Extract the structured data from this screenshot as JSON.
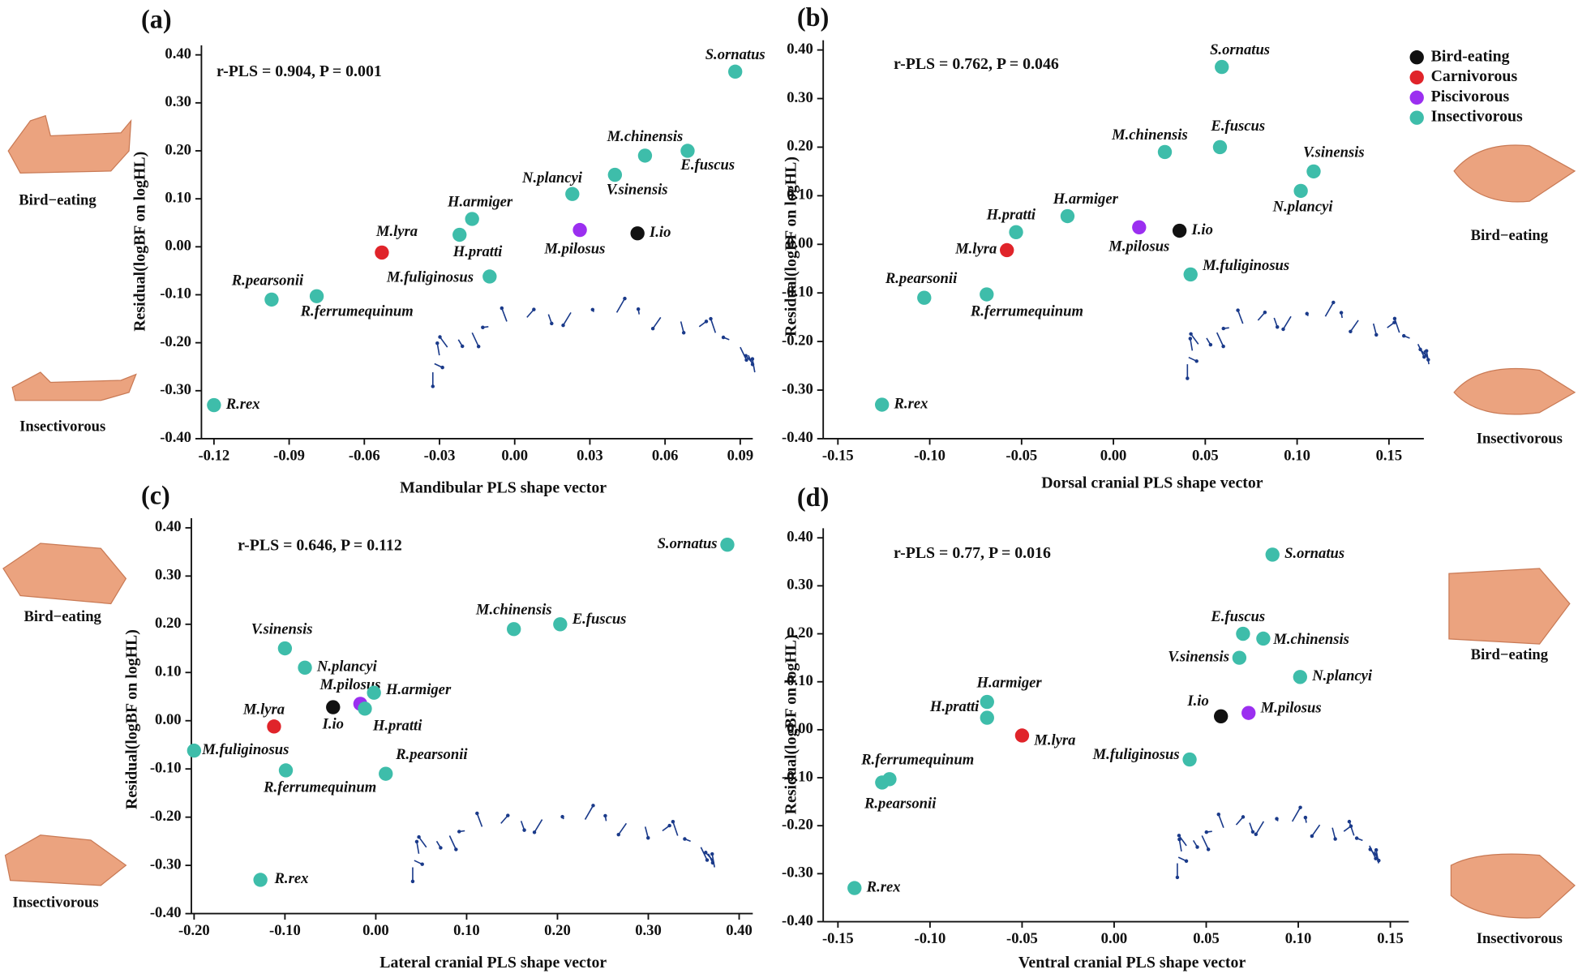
{
  "chart_data": [
    {
      "type": "scatter",
      "title": "(a)",
      "annotation": "r-PLS = 0.904, P = 0.001",
      "x_label": "Mandibular PLS shape vector",
      "y_label": "Residual(logBF on logHL)",
      "images": [
        "Bird−eating",
        "Insectivorous"
      ],
      "legend": false,
      "xlim": [
        -0.125,
        0.095
      ],
      "ylim": [
        -0.4,
        0.42
      ],
      "xticks": [
        {
          "value": -0.12,
          "label": "-0.12"
        },
        {
          "value": -0.09,
          "label": "-0.09"
        },
        {
          "value": -0.06,
          "label": "-0.06"
        },
        {
          "value": -0.03,
          "label": "-0.03"
        },
        {
          "value": 0,
          "label": "0.00"
        },
        {
          "value": 0.03,
          "label": "0.03"
        },
        {
          "value": 0.06,
          "label": "0.06"
        },
        {
          "value": 0.09,
          "label": "0.09"
        }
      ],
      "yticks": [
        {
          "value": 0.4,
          "label": "0.40"
        },
        {
          "value": 0.3,
          "label": "0.30"
        },
        {
          "value": 0.2,
          "label": "0.20"
        },
        {
          "value": 0.1,
          "label": "0.10"
        },
        {
          "value": 0,
          "label": "0.00"
        },
        {
          "value": -0.1,
          "label": "-0.10"
        },
        {
          "value": -0.2,
          "label": "-0.20"
        },
        {
          "value": -0.3,
          "label": "-0.30"
        },
        {
          "value": -0.4,
          "label": "-0.40"
        }
      ],
      "series": [
        {
          "name": "Bird-eating",
          "color": "#111111",
          "labels": [
            "I.io"
          ],
          "x": [
            0.049
          ],
          "values": [
            0.028
          ]
        },
        {
          "name": "Carnivorous",
          "color": "#e0242a",
          "labels": [
            "M.lyra"
          ],
          "x": [
            -0.053
          ],
          "values": [
            -0.012
          ]
        },
        {
          "name": "Piscivorous",
          "color": "#9b2ff0",
          "labels": [
            "M.pilosus"
          ],
          "x": [
            0.026
          ],
          "values": [
            0.035
          ]
        },
        {
          "name": "Insectivorous",
          "color": "#3ebdaa",
          "labels": [
            "S.ornatus",
            "M.chinensis",
            "E.fuscus",
            "V.sinensis",
            "N.plancyi",
            "H.armiger",
            "H.pratti",
            "M.fuliginosus",
            "R.pearsonii",
            "R.ferrumequinum",
            "R.rex"
          ],
          "x": [
            0.088,
            0.052,
            0.069,
            0.04,
            0.023,
            -0.017,
            -0.022,
            -0.01,
            -0.097,
            -0.079,
            -0.12
          ],
          "values": [
            0.365,
            0.19,
            0.2,
            0.15,
            0.11,
            0.058,
            0.025,
            -0.062,
            -0.11,
            -0.103,
            -0.33
          ]
        }
      ]
    },
    {
      "type": "scatter",
      "title": "(b)",
      "annotation": "r-PLS = 0.762, P = 0.046",
      "x_label": "Dorsal cranial PLS shape vector",
      "y_label": "Residual(logBF on logHL)",
      "images": [
        "Bird−eating",
        "Insectivorous"
      ],
      "legend": true,
      "xlim": [
        -0.158,
        0.169
      ],
      "ylim": [
        -0.4,
        0.42
      ],
      "xticks": [
        {
          "value": -0.15,
          "label": "-0.15"
        },
        {
          "value": -0.1,
          "label": "-0.10"
        },
        {
          "value": -0.05,
          "label": "-0.05"
        },
        {
          "value": 0,
          "label": "0.00"
        },
        {
          "value": 0.05,
          "label": "0.05"
        },
        {
          "value": 0.1,
          "label": "0.10"
        },
        {
          "value": 0.15,
          "label": "0.15"
        }
      ],
      "yticks": [
        {
          "value": 0.4,
          "label": "0.40"
        },
        {
          "value": 0.3,
          "label": "0.30"
        },
        {
          "value": 0.2,
          "label": "0.20"
        },
        {
          "value": 0.1,
          "label": "0.10"
        },
        {
          "value": 0,
          "label": "0.00"
        },
        {
          "value": -0.1,
          "label": "-0.10"
        },
        {
          "value": -0.2,
          "label": "-0.20"
        },
        {
          "value": -0.3,
          "label": "-0.30"
        },
        {
          "value": -0.4,
          "label": "-0.40"
        }
      ],
      "series": [
        {
          "name": "Bird-eating",
          "color": "#111111",
          "labels": [
            "I.io"
          ],
          "x": [
            0.036
          ],
          "values": [
            0.028
          ]
        },
        {
          "name": "Carnivorous",
          "color": "#e0242a",
          "labels": [
            "M.lyra"
          ],
          "x": [
            -0.058
          ],
          "values": [
            -0.012
          ]
        },
        {
          "name": "Piscivorous",
          "color": "#9b2ff0",
          "labels": [
            "M.pilosus"
          ],
          "x": [
            0.014
          ],
          "values": [
            0.035
          ]
        },
        {
          "name": "Insectivorous",
          "color": "#3ebdaa",
          "labels": [
            "S.ornatus",
            "M.chinensis",
            "E.fuscus",
            "V.sinensis",
            "N.plancyi",
            "H.armiger",
            "H.pratti",
            "M.fuliginosus",
            "R.pearsonii",
            "R.ferrumequinum",
            "R.rex"
          ],
          "x": [
            0.059,
            0.028,
            0.058,
            0.109,
            0.102,
            -0.025,
            -0.053,
            0.042,
            -0.103,
            -0.069,
            -0.126
          ],
          "values": [
            0.365,
            0.19,
            0.2,
            0.15,
            0.11,
            0.058,
            0.025,
            -0.062,
            -0.11,
            -0.103,
            -0.33
          ]
        }
      ]
    },
    {
      "type": "scatter",
      "title": "(c)",
      "annotation": "r-PLS = 0.646, P = 0.112",
      "x_label": "Lateral cranial PLS shape vector",
      "y_label": "Residual(logBF on logHL)",
      "images": [
        "Bird−eating",
        "Insectivorous"
      ],
      "legend": false,
      "xlim": [
        -0.203,
        0.415
      ],
      "ylim": [
        -0.4,
        0.42
      ],
      "xticks": [
        {
          "value": -0.2,
          "label": "-0.20"
        },
        {
          "value": -0.1,
          "label": "-0.10"
        },
        {
          "value": 0,
          "label": "0.00"
        },
        {
          "value": 0.1,
          "label": "0.10"
        },
        {
          "value": 0.2,
          "label": "0.20"
        },
        {
          "value": 0.3,
          "label": "0.30"
        },
        {
          "value": 0.4,
          "label": "0.40"
        }
      ],
      "yticks": [
        {
          "value": 0.4,
          "label": "0.40"
        },
        {
          "value": 0.3,
          "label": "0.30"
        },
        {
          "value": 0.2,
          "label": "0.20"
        },
        {
          "value": 0.1,
          "label": "0.10"
        },
        {
          "value": 0,
          "label": "0.00"
        },
        {
          "value": -0.1,
          "label": "-0.10"
        },
        {
          "value": -0.2,
          "label": "-0.20"
        },
        {
          "value": -0.3,
          "label": "-0.30"
        },
        {
          "value": -0.4,
          "label": "-0.40"
        }
      ],
      "series": [
        {
          "name": "Bird-eating",
          "color": "#111111",
          "labels": [
            "I.io"
          ],
          "x": [
            -0.047
          ],
          "values": [
            0.028
          ]
        },
        {
          "name": "Carnivorous",
          "color": "#e0242a",
          "labels": [
            "M.lyra"
          ],
          "x": [
            -0.112
          ],
          "values": [
            -0.012
          ]
        },
        {
          "name": "Piscivorous",
          "color": "#9b2ff0",
          "labels": [
            "M.pilosus"
          ],
          "x": [
            -0.017
          ],
          "values": [
            0.035
          ]
        },
        {
          "name": "Insectivorous",
          "color": "#3ebdaa",
          "labels": [
            "S.ornatus",
            "M.chinensis",
            "E.fuscus",
            "V.sinensis",
            "N.plancyi",
            "H.armiger",
            "H.pratti",
            "M.fuliginosus",
            "R.pearsonii",
            "R.ferrumequinum",
            "R.rex"
          ],
          "x": [
            0.387,
            0.152,
            0.203,
            -0.1,
            -0.078,
            -0.002,
            -0.012,
            -0.2,
            0.011,
            -0.099,
            -0.127
          ],
          "values": [
            0.365,
            0.19,
            0.2,
            0.15,
            0.11,
            0.058,
            0.025,
            -0.062,
            -0.11,
            -0.103,
            -0.33
          ]
        }
      ]
    },
    {
      "type": "scatter",
      "title": "(d)",
      "annotation": "r-PLS = 0.77, P = 0.016",
      "x_label": "Ventral cranial PLS shape vector",
      "y_label": "Residual(logBF on logHL)",
      "images": [
        "Bird−eating",
        "Insectivorous"
      ],
      "legend": false,
      "xlim": [
        -0.158,
        0.16
      ],
      "ylim": [
        -0.4,
        0.42
      ],
      "xticks": [
        {
          "value": -0.15,
          "label": "-0.15"
        },
        {
          "value": -0.1,
          "label": "-0.10"
        },
        {
          "value": -0.05,
          "label": "-0.05"
        },
        {
          "value": 0,
          "label": "0.00"
        },
        {
          "value": 0.05,
          "label": "0.05"
        },
        {
          "value": 0.1,
          "label": "0.10"
        },
        {
          "value": 0.15,
          "label": "0.15"
        }
      ],
      "yticks": [
        {
          "value": 0.4,
          "label": "0.40"
        },
        {
          "value": 0.3,
          "label": "0.30"
        },
        {
          "value": 0.2,
          "label": "0.20"
        },
        {
          "value": 0.1,
          "label": "0.10"
        },
        {
          "value": 0,
          "label": "0.00"
        },
        {
          "value": -0.1,
          "label": "-0.10"
        },
        {
          "value": -0.2,
          "label": "-0.20"
        },
        {
          "value": -0.3,
          "label": "-0.30"
        },
        {
          "value": -0.4,
          "label": "-0.40"
        }
      ],
      "series": [
        {
          "name": "Bird-eating",
          "color": "#111111",
          "labels": [
            "I.io"
          ],
          "x": [
            0.058
          ],
          "values": [
            0.028
          ]
        },
        {
          "name": "Carnivorous",
          "color": "#e0242a",
          "labels": [
            "M.lyra"
          ],
          "x": [
            -0.05
          ],
          "values": [
            -0.012
          ]
        },
        {
          "name": "Piscivorous",
          "color": "#9b2ff0",
          "labels": [
            "M.pilosus"
          ],
          "x": [
            0.073
          ],
          "values": [
            0.035
          ]
        },
        {
          "name": "Insectivorous",
          "color": "#3ebdaa",
          "labels": [
            "S.ornatus",
            "M.chinensis",
            "E.fuscus",
            "V.sinensis",
            "N.plancyi",
            "H.armiger",
            "H.pratti",
            "M.fuliginosus",
            "R.pearsonii",
            "R.ferrumequinum",
            "R.rex"
          ],
          "x": [
            0.086,
            0.081,
            0.07,
            0.068,
            0.101,
            -0.069,
            -0.069,
            0.041,
            -0.126,
            -0.122,
            -0.141
          ],
          "values": [
            0.365,
            0.19,
            0.2,
            0.15,
            0.11,
            0.058,
            0.025,
            -0.062,
            -0.11,
            -0.103,
            -0.33
          ]
        }
      ]
    }
  ]
}
